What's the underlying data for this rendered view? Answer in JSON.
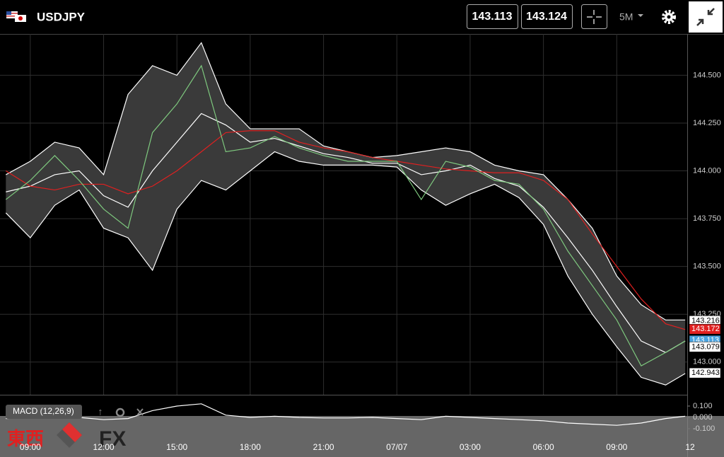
{
  "header": {
    "symbol": "USDJPY",
    "bid": "143.113",
    "ask": "143.124",
    "timeframe": "5M"
  },
  "watermark": {
    "text1": "東西",
    "text2": "FX"
  },
  "chart_data": [
    {
      "type": "line",
      "x": [
        -1,
        0,
        1,
        2,
        3,
        4,
        5,
        6,
        7,
        8,
        9,
        10,
        11,
        12,
        13,
        14,
        15,
        16,
        17,
        18,
        19,
        20,
        21,
        22,
        23,
        24,
        25,
        26,
        26.8
      ],
      "xlim": [
        -1.24,
        27
      ],
      "xticks": [
        {
          "value": 0,
          "label": "09:00"
        },
        {
          "value": 3,
          "label": "12:00"
        },
        {
          "value": 6,
          "label": "15:00"
        },
        {
          "value": 9,
          "label": "18:00"
        },
        {
          "value": 12,
          "label": "21:00"
        },
        {
          "value": 15,
          "label": "07/07"
        },
        {
          "value": 18,
          "label": "03:00"
        },
        {
          "value": 21,
          "label": "06:00"
        },
        {
          "value": 24,
          "label": "09:00"
        },
        {
          "value": 27,
          "label": "12"
        }
      ],
      "ylim": [
        142.829,
        144.716
      ],
      "yticks": [
        {
          "value": 143,
          "label": "143.000"
        },
        {
          "value": 143.25,
          "label": "143.250"
        },
        {
          "value": 143.5,
          "label": "143.500"
        },
        {
          "value": 143.75,
          "label": "143.750"
        },
        {
          "value": 144,
          "label": "144.000"
        },
        {
          "value": 144.25,
          "label": "144.250"
        },
        {
          "value": 144.5,
          "label": "144.500"
        }
      ],
      "grid": true,
      "series": [
        {
          "color": "#ffffff",
          "values": [
            143.98,
            144.05,
            144.15,
            144.12,
            143.98,
            144.4,
            144.55,
            144.5,
            144.67,
            144.35,
            144.22,
            144.22,
            144.22,
            144.13,
            144.1,
            144.07,
            144.08,
            144.1,
            144.12,
            144.1,
            144.03,
            144.0,
            143.98,
            143.85,
            143.7,
            143.45,
            143.3,
            143.22,
            143.22
          ]
        },
        {
          "color": "#ffffff",
          "values": [
            143.89,
            143.92,
            143.98,
            144.0,
            143.87,
            143.81,
            144.0,
            144.15,
            144.3,
            144.24,
            144.15,
            144.17,
            144.13,
            144.09,
            144.07,
            144.04,
            144.04,
            143.98,
            144.0,
            144.03,
            143.96,
            143.92,
            143.81,
            143.65,
            143.48,
            143.29,
            143.11,
            143.05,
            143.11
          ]
        },
        {
          "color": "#ffffff",
          "values": [
            143.78,
            143.65,
            143.82,
            143.9,
            143.7,
            143.65,
            143.48,
            143.8,
            143.95,
            143.9,
            144.0,
            144.1,
            144.05,
            144.03,
            144.03,
            144.03,
            144.02,
            143.9,
            143.82,
            143.88,
            143.93,
            143.86,
            143.72,
            143.45,
            143.25,
            143.08,
            142.92,
            142.88,
            142.94
          ]
        },
        {
          "color": "#e02020",
          "values": [
            144.0,
            143.92,
            143.9,
            143.93,
            143.93,
            143.88,
            143.92,
            144.0,
            144.1,
            144.2,
            144.21,
            144.21,
            144.15,
            144.12,
            144.1,
            144.07,
            144.05,
            144.03,
            144.01,
            144.0,
            143.99,
            143.99,
            143.95,
            143.85,
            143.67,
            143.5,
            143.33,
            143.2,
            143.17
          ]
        },
        {
          "color": "#7ec87e",
          "values": [
            143.85,
            143.95,
            144.08,
            143.95,
            143.8,
            143.7,
            144.2,
            144.35,
            144.55,
            144.1,
            144.12,
            144.18,
            144.12,
            144.08,
            144.05,
            144.05,
            144.05,
            143.85,
            144.05,
            144.02,
            143.95,
            143.93,
            143.8,
            143.58,
            143.4,
            143.22,
            142.98,
            143.05,
            143.11
          ]
        }
      ],
      "price_tags": [
        {
          "value": 143.216,
          "color": "#ffffff"
        },
        {
          "value": 143.172,
          "color": "#e02020"
        },
        {
          "value": 143.113,
          "color": "#4aa3df"
        },
        {
          "value": 143.079,
          "color": "#ffffff"
        },
        {
          "value": 142.943,
          "color": "#ffffff"
        }
      ]
    },
    {
      "type": "line",
      "title": "MACD (12,26,9)",
      "x": [
        -1,
        0,
        1,
        2,
        3,
        4,
        5,
        6,
        7,
        8,
        9,
        10,
        11,
        12,
        13,
        14,
        15,
        16,
        17,
        18,
        19,
        20,
        21,
        22,
        23,
        24,
        25,
        26,
        26.8
      ],
      "xlim": [
        -1.24,
        27
      ],
      "ylim": [
        -0.35,
        0.1875
      ],
      "yticks": [
        {
          "value": 0.1,
          "label": "0.100"
        },
        {
          "value": 0,
          "label": "0.000"
        },
        {
          "value": -0.1,
          "label": "-0.100"
        }
      ],
      "series": [
        {
          "color": "#ffffff",
          "values": [
            -0.01,
            0.0,
            0.01,
            0.0,
            -0.02,
            -0.01,
            0.06,
            0.1,
            0.12,
            0.02,
            0.0,
            0.01,
            0.0,
            -0.005,
            -0.005,
            0.0,
            -0.01,
            -0.02,
            0.01,
            0.0,
            -0.01,
            -0.02,
            -0.03,
            -0.05,
            -0.06,
            -0.07,
            -0.05,
            -0.01,
            0.01
          ]
        }
      ]
    }
  ]
}
